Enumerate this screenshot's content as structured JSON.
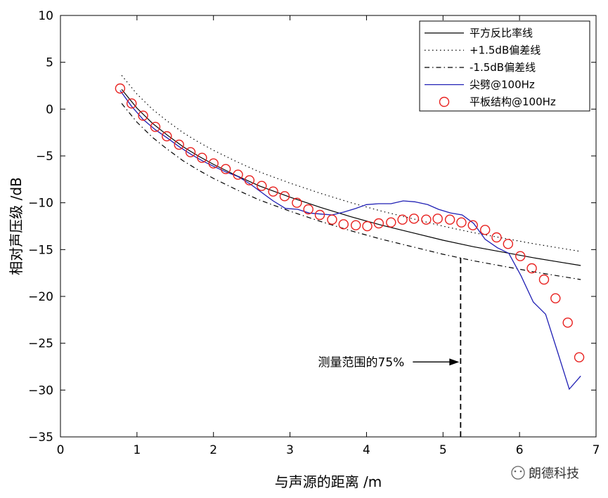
{
  "chart_data": {
    "type": "line",
    "xlabel": "与声源的距离 /m",
    "ylabel": "相对声压级 /dB",
    "xlim": [
      0,
      7
    ],
    "ylim": [
      -35,
      10
    ],
    "xticks": [
      0,
      1,
      2,
      3,
      4,
      5,
      6,
      7
    ],
    "yticks": [
      10,
      5,
      0,
      -5,
      -10,
      -15,
      -20,
      -25,
      -30,
      -35
    ],
    "grid": false,
    "legend_position": "top-right",
    "series": [
      {
        "name": "平方反比率线",
        "style": "solid",
        "color": "#000000",
        "x": [
          0.8,
          1.0,
          1.2,
          1.4,
          1.6,
          1.8,
          2.0,
          2.3,
          2.6,
          3.0,
          3.4,
          3.8,
          4.2,
          4.6,
          5.0,
          5.4,
          5.8,
          6.2,
          6.5,
          6.8
        ],
        "y": [
          2.1,
          0.1,
          -1.5,
          -2.8,
          -4.0,
          -5.0,
          -5.9,
          -7.1,
          -8.2,
          -9.4,
          -10.5,
          -11.5,
          -12.4,
          -13.2,
          -14.0,
          -14.7,
          -15.3,
          -15.9,
          -16.3,
          -16.7
        ]
      },
      {
        "name": "+1.5dB偏差线",
        "style": "dotted",
        "color": "#000000",
        "x": [
          0.8,
          1.0,
          1.2,
          1.4,
          1.6,
          1.8,
          2.0,
          2.3,
          2.6,
          3.0,
          3.4,
          3.8,
          4.2,
          4.6,
          5.0,
          5.4,
          5.8,
          6.2,
          6.5,
          6.8
        ],
        "y": [
          3.6,
          1.6,
          0.0,
          -1.3,
          -2.5,
          -3.5,
          -4.4,
          -5.6,
          -6.7,
          -7.9,
          -9.0,
          -10.0,
          -10.9,
          -11.7,
          -12.5,
          -13.2,
          -13.8,
          -14.4,
          -14.8,
          -15.2
        ]
      },
      {
        "name": "-1.5dB偏差线",
        "style": "dashdot",
        "color": "#000000",
        "x": [
          0.8,
          1.0,
          1.2,
          1.4,
          1.6,
          1.8,
          2.0,
          2.3,
          2.6,
          3.0,
          3.4,
          3.8,
          4.2,
          4.6,
          5.0,
          5.4,
          5.8,
          6.2,
          6.5,
          6.8
        ],
        "y": [
          0.6,
          -1.4,
          -3.0,
          -4.3,
          -5.5,
          -6.5,
          -7.4,
          -8.6,
          -9.7,
          -10.9,
          -12.0,
          -13.0,
          -13.9,
          -14.7,
          -15.5,
          -16.2,
          -16.8,
          -17.4,
          -17.8,
          -18.2
        ]
      },
      {
        "name": "尖劈@100Hz",
        "style": "solid",
        "color": "#1f1fb4",
        "x": [
          0.78,
          0.93,
          1.08,
          1.24,
          1.4,
          1.55,
          1.7,
          1.85,
          2.0,
          2.16,
          2.32,
          2.48,
          2.63,
          2.78,
          2.94,
          3.1,
          3.25,
          3.4,
          3.55,
          3.7,
          3.86,
          4.0,
          4.16,
          4.32,
          4.48,
          4.63,
          4.8,
          4.94,
          5.1,
          5.25,
          5.4,
          5.55,
          5.71,
          5.86,
          6.02,
          6.18,
          6.34,
          6.5,
          6.65,
          6.8
        ],
        "y": [
          2.0,
          0.3,
          -1.1,
          -2.2,
          -3.1,
          -4.0,
          -4.8,
          -5.5,
          -6.1,
          -6.7,
          -7.2,
          -8.0,
          -8.9,
          -9.8,
          -10.6,
          -10.7,
          -11.1,
          -11.2,
          -11.3,
          -11.0,
          -10.6,
          -10.2,
          -10.1,
          -10.1,
          -9.8,
          -9.9,
          -10.2,
          -10.7,
          -11.1,
          -11.3,
          -12.2,
          -13.9,
          -14.8,
          -15.4,
          -17.8,
          -20.6,
          -21.9,
          -26.0,
          -29.9,
          -28.5
        ]
      },
      {
        "name": "平板结构@100Hz",
        "style": "marker",
        "marker": "circle",
        "color": "#e8201e",
        "x": [
          0.78,
          0.93,
          1.08,
          1.24,
          1.39,
          1.55,
          1.7,
          1.85,
          2.0,
          2.16,
          2.32,
          2.47,
          2.63,
          2.78,
          2.93,
          3.09,
          3.24,
          3.39,
          3.55,
          3.7,
          3.86,
          4.01,
          4.16,
          4.32,
          4.47,
          4.62,
          4.78,
          4.93,
          5.09,
          5.24,
          5.39,
          5.55,
          5.7,
          5.85,
          6.01,
          6.16,
          6.32,
          6.47,
          6.63,
          6.78
        ],
        "y": [
          2.2,
          0.6,
          -0.7,
          -1.9,
          -2.9,
          -3.8,
          -4.6,
          -5.2,
          -5.8,
          -6.4,
          -7.0,
          -7.6,
          -8.2,
          -8.8,
          -9.3,
          -10.0,
          -10.7,
          -11.3,
          -11.8,
          -12.3,
          -12.4,
          -12.5,
          -12.2,
          -12.1,
          -11.8,
          -11.7,
          -11.8,
          -11.7,
          -11.8,
          -12.1,
          -12.4,
          -12.9,
          -13.7,
          -14.4,
          -15.7,
          -17.0,
          -18.2,
          -20.2,
          -22.8,
          -26.5
        ]
      }
    ],
    "vline": {
      "x": 5.23,
      "style": "dashed",
      "color": "#000000"
    },
    "annotation": {
      "text": "测量范围的75%",
      "arrow_x": 5.23,
      "y": -27
    }
  },
  "watermark": {
    "text": "朗德科技"
  }
}
